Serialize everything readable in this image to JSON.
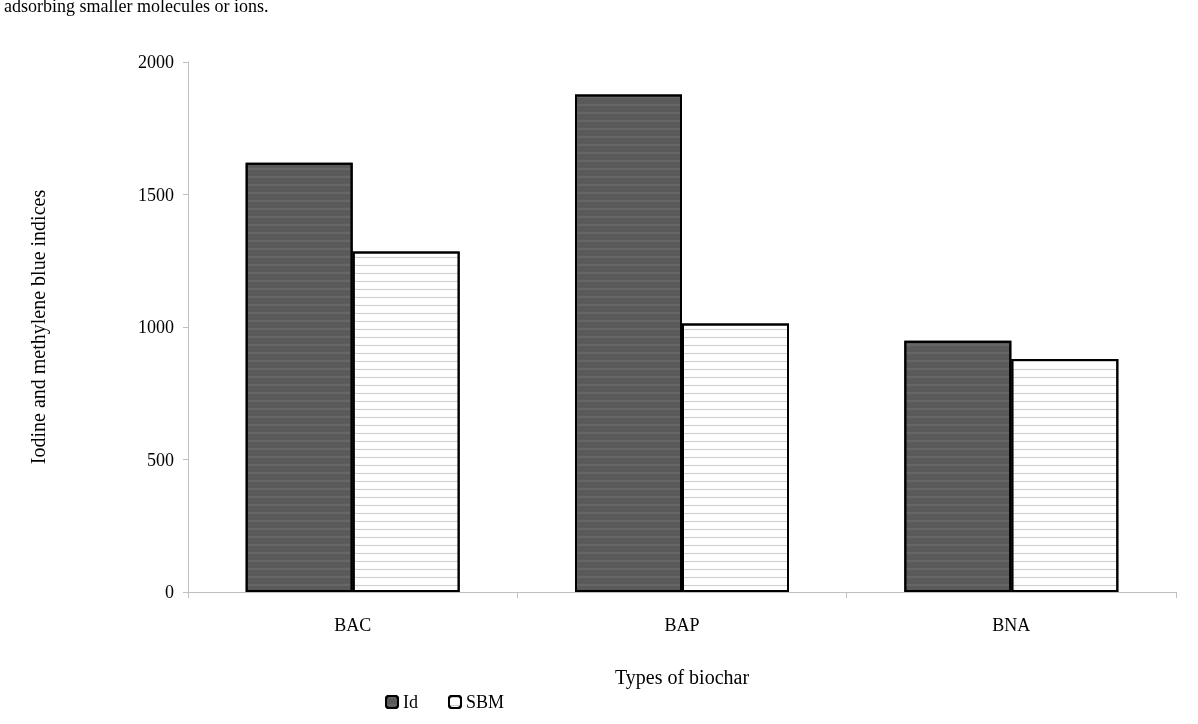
{
  "chart_data": {
    "type": "bar",
    "annotations": [
      "adsorbing smaller molecules or ions."
    ],
    "xlabel": "Types of biochar",
    "ylabel": "Iodine and methylene blue indices",
    "categories": [
      "BAC",
      "BAP",
      "BNA"
    ],
    "series": [
      {
        "name": "Id",
        "color": "#5a5a5a",
        "values": [
          1620,
          1877,
          948
        ]
      },
      {
        "name": "SBM",
        "color": "#ffffff",
        "values": [
          1285,
          1013,
          879
        ]
      }
    ],
    "ylim": [
      0,
      2000
    ],
    "yticks": [
      0,
      500,
      1000,
      1500,
      2000
    ],
    "grid": false,
    "legend": "bottom"
  }
}
